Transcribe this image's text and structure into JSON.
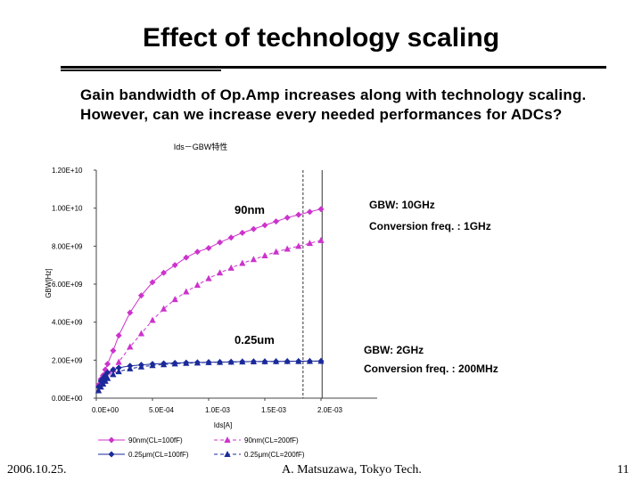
{
  "slide": {
    "title": "Effect of  technology scaling",
    "subtitle_1": "Gain bandwidth of Op.Amp increases along with technology scaling.",
    "subtitle_2": "However, can we increase every needed performances for ADCs?",
    "footer_date": "2006.10.25.",
    "footer_author": "A. Matsuzawa, Tokyo Tech.",
    "footer_page": "11"
  },
  "chart_data": {
    "type": "line",
    "title": "Ids－GBW特性",
    "xlabel": "Ids[A]",
    "ylabel": "GBW[Hz]",
    "xlim": [
      0,
      0.0025
    ],
    "ylim": [
      0,
      12000000000
    ],
    "x_ticks": [
      "0.0E+00",
      "5.0E-04",
      "1.0E-03",
      "1.5E-03",
      "2.0E-03"
    ],
    "y_ticks": [
      "0.00E+00",
      "2.00E+09",
      "4.00E+09",
      "6.00E+09",
      "8.00E+09",
      "1.00E+10",
      "1.20E+10"
    ],
    "grid": false,
    "legend": "bottom",
    "series": [
      {
        "name": "90nm(CL=100fF)",
        "color": "#cc33cc",
        "marker": "diamond",
        "line": "solid",
        "x": [
          2e-05,
          4e-05,
          6e-05,
          8e-05,
          0.0001,
          0.00015,
          0.0002,
          0.0003,
          0.0004,
          0.0005,
          0.0006,
          0.0007,
          0.0008,
          0.0009,
          0.001,
          0.0011,
          0.0012,
          0.0013,
          0.0014,
          0.0015,
          0.0016,
          0.0017,
          0.0018,
          0.0019,
          0.002
        ],
        "y": [
          700000000,
          1000000000,
          1200000000,
          1500000000,
          1800000000,
          2500000000,
          3300000000,
          4500000000,
          5400000000,
          6100000000,
          6600000000,
          7000000000,
          7400000000,
          7700000000,
          7900000000,
          8200000000,
          8450000000,
          8700000000,
          8900000000,
          9100000000,
          9300000000,
          9500000000,
          9650000000,
          9800000000,
          9950000000
        ]
      },
      {
        "name": "90nm(CL=200fF)",
        "color": "#cc33cc",
        "marker": "triangle",
        "line": "dashed",
        "x": [
          2e-05,
          4e-05,
          6e-05,
          8e-05,
          0.0001,
          0.00015,
          0.0002,
          0.0003,
          0.0004,
          0.0005,
          0.0006,
          0.0007,
          0.0008,
          0.0009,
          0.001,
          0.0011,
          0.0012,
          0.0013,
          0.0014,
          0.0015,
          0.0016,
          0.0017,
          0.0018,
          0.0019,
          0.002
        ],
        "y": [
          400000000,
          600000000,
          750000000,
          900000000,
          1050000000,
          1500000000,
          1900000000,
          2700000000,
          3400000000,
          4100000000,
          4700000000,
          5200000000,
          5600000000,
          5950000000,
          6300000000,
          6600000000,
          6850000000,
          7100000000,
          7300000000,
          7500000000,
          7700000000,
          7850000000,
          8000000000,
          8150000000,
          8300000000
        ]
      },
      {
        "name": "0.25μm(CL=100fF)",
        "color": "#1a2a9a",
        "marker": "diamond",
        "line": "solid",
        "x": [
          2e-05,
          4e-05,
          6e-05,
          8e-05,
          0.0001,
          0.00015,
          0.0002,
          0.0003,
          0.0004,
          0.0005,
          0.0006,
          0.0007,
          0.0008,
          0.0009,
          0.001,
          0.0011,
          0.0012,
          0.0013,
          0.0014,
          0.0015,
          0.0016,
          0.0017,
          0.0018,
          0.0019,
          0.002
        ],
        "y": [
          600000000,
          900000000,
          1050000000,
          1200000000,
          1350000000,
          1500000000,
          1600000000,
          1700000000,
          1750000000,
          1800000000,
          1830000000,
          1850000000,
          1870000000,
          1880000000,
          1890000000,
          1900000000,
          1910000000,
          1920000000,
          1925000000,
          1930000000,
          1935000000,
          1940000000,
          1945000000,
          1948000000,
          1950000000
        ]
      },
      {
        "name": "0.25μm(CL=200fF)",
        "color": "#1a2a9a",
        "marker": "triangle",
        "line": "dashed",
        "x": [
          2e-05,
          4e-05,
          6e-05,
          8e-05,
          0.0001,
          0.00015,
          0.0002,
          0.0003,
          0.0004,
          0.0005,
          0.0006,
          0.0007,
          0.0008,
          0.0009,
          0.001,
          0.0011,
          0.0012,
          0.0013,
          0.0014,
          0.0015,
          0.0016,
          0.0017,
          0.0018,
          0.0019,
          0.002
        ],
        "y": [
          400000000,
          600000000,
          750000000,
          900000000,
          1050000000,
          1250000000,
          1400000000,
          1550000000,
          1650000000,
          1720000000,
          1770000000,
          1810000000,
          1840000000,
          1860000000,
          1880000000,
          1895000000,
          1905000000,
          1915000000,
          1920000000,
          1928000000,
          1933000000,
          1938000000,
          1942000000,
          1946000000,
          1950000000
        ]
      }
    ],
    "reference_lines": [
      {
        "x": 0.00184,
        "style": "dashed"
      },
      {
        "x": 0.00201,
        "style": "solid"
      }
    ],
    "annotations": {
      "label_90nm": "90nm",
      "label_025um": "0.25um",
      "gbw_high": "GBW: 10GHz",
      "conv_high": "Conversion freq. : 1GHz",
      "gbw_low": "GBW: 2GHz",
      "conv_low": "Conversion freq. : 200MHz"
    }
  }
}
